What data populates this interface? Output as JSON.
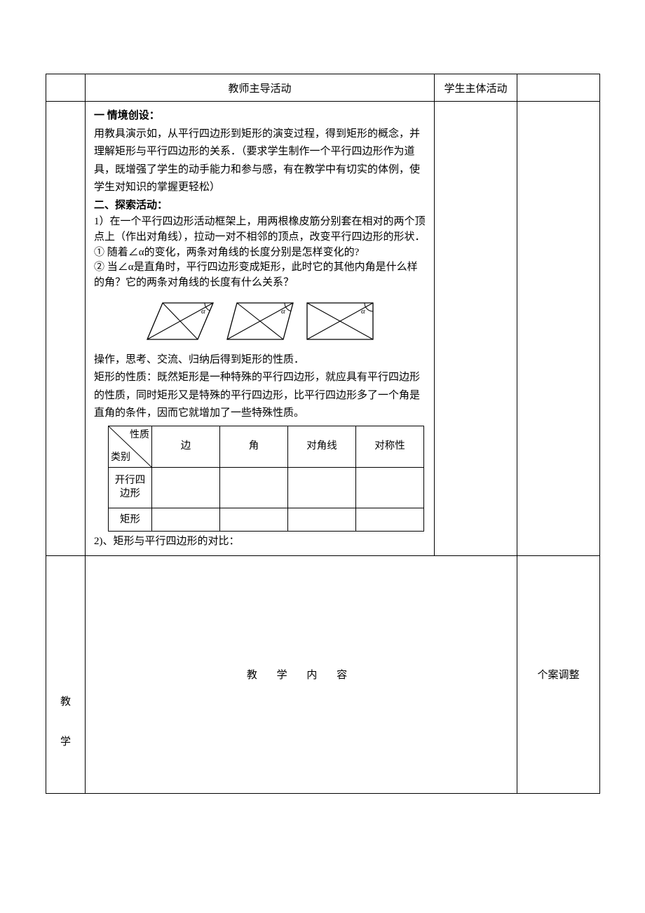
{
  "header": {
    "teacher_activity": "教师主导活动",
    "student_activity": "学生主体活动"
  },
  "section1": {
    "title": "一  情境创设：",
    "para": "用教具演示如，从平行四边形到矩形的演变过程，得到矩形的概念，并理解矩形与平行四边形的关系．（要求学生制作一个平行四边形作为道具，既增强了学生的动手能力和参与感，有在教学中有切实的体例，使学生对知识的掌握更轻松）"
  },
  "section2": {
    "title": "二、探索活动：",
    "q1": "1）在一个平行四边形活动框架上，用两根橡皮筋分别套在相对的两个顶点上（作出对角线），拉动一对不相邻的顶点，改变平行四边形的形状．",
    "b1": "①  随着∠α的变化，两条对角线的长度分别是怎样变化的?",
    "b2": "②  当∠α是直角时，平行四边形变成矩形，此时它的其他内角是什么样的角？它的两条对角线的长度有什么关系？",
    "after_fig": "操作，思考、交流、归纳后得到矩形的性质．",
    "prop_intro": "矩形的性质：既然矩形是一种特殊的平行四边形，就应具有平行四边形的性质，同时矩形又是特殊的平行四边形，比平行四边形多了一个角是直角的条件，因而它就增加了一些特殊性质。",
    "compare_label": "2)、矩形与平行四边形的对比："
  },
  "inner_table": {
    "diag_top": "性质",
    "diag_bot": "类别",
    "cols": [
      "边",
      "角",
      "对角线",
      "对称性"
    ],
    "row1": "开行四边形",
    "row2": "矩形"
  },
  "figures": {
    "alpha": "α",
    "skew1": 22,
    "skew2": 14,
    "skew3": 0,
    "stroke": "#000000",
    "fill": "#ffffff",
    "w": 100,
    "h": 62
  },
  "bottom": {
    "side_chars": [
      "教",
      "学"
    ],
    "center": "教 学 内 容",
    "right": "个案调整"
  }
}
